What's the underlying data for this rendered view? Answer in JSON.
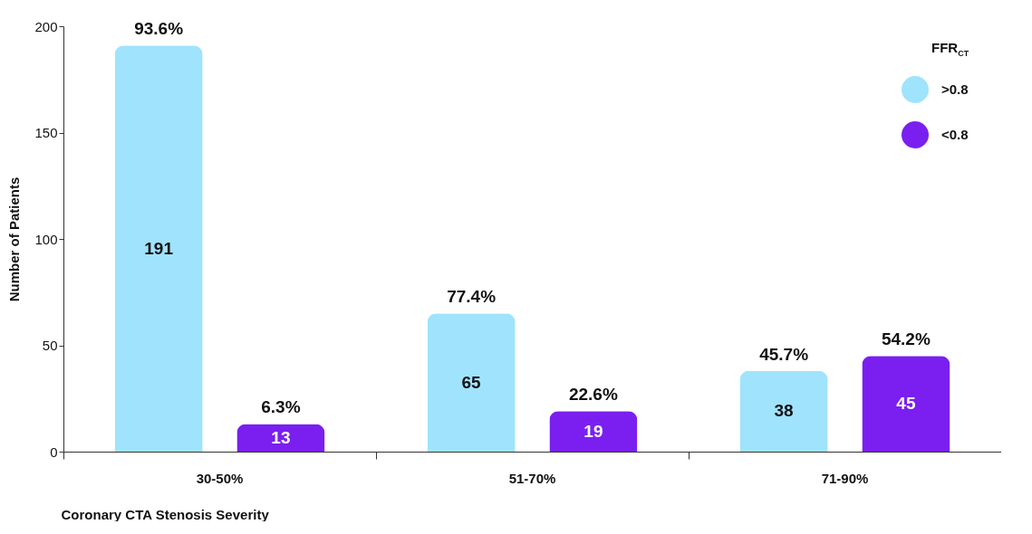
{
  "chart_data": {
    "type": "bar",
    "categories": [
      "30-50%",
      "51-70%",
      "71-90%"
    ],
    "series": [
      {
        "name": ">0.8",
        "color": "#a0e3fc",
        "values": [
          191,
          65,
          38
        ]
      },
      {
        "name": "<0.8",
        "color": "#7a1ff0",
        "values": [
          13,
          19,
          45
        ]
      }
    ],
    "ylim": [
      0,
      200
    ],
    "yticks": [
      0,
      50,
      100,
      150,
      200
    ],
    "xlabel": "Coronary CTA Stenosis Severity",
    "ylabel": "Number of Patients",
    "legend_title": "FFR$_{CT}$",
    "legend": "top right",
    "grid": false,
    "data_labels": true,
    "annotations": [
      "93.6%",
      "6.3%",
      "77.4%",
      "22.6%",
      "45.7%",
      "54.2%"
    ]
  }
}
